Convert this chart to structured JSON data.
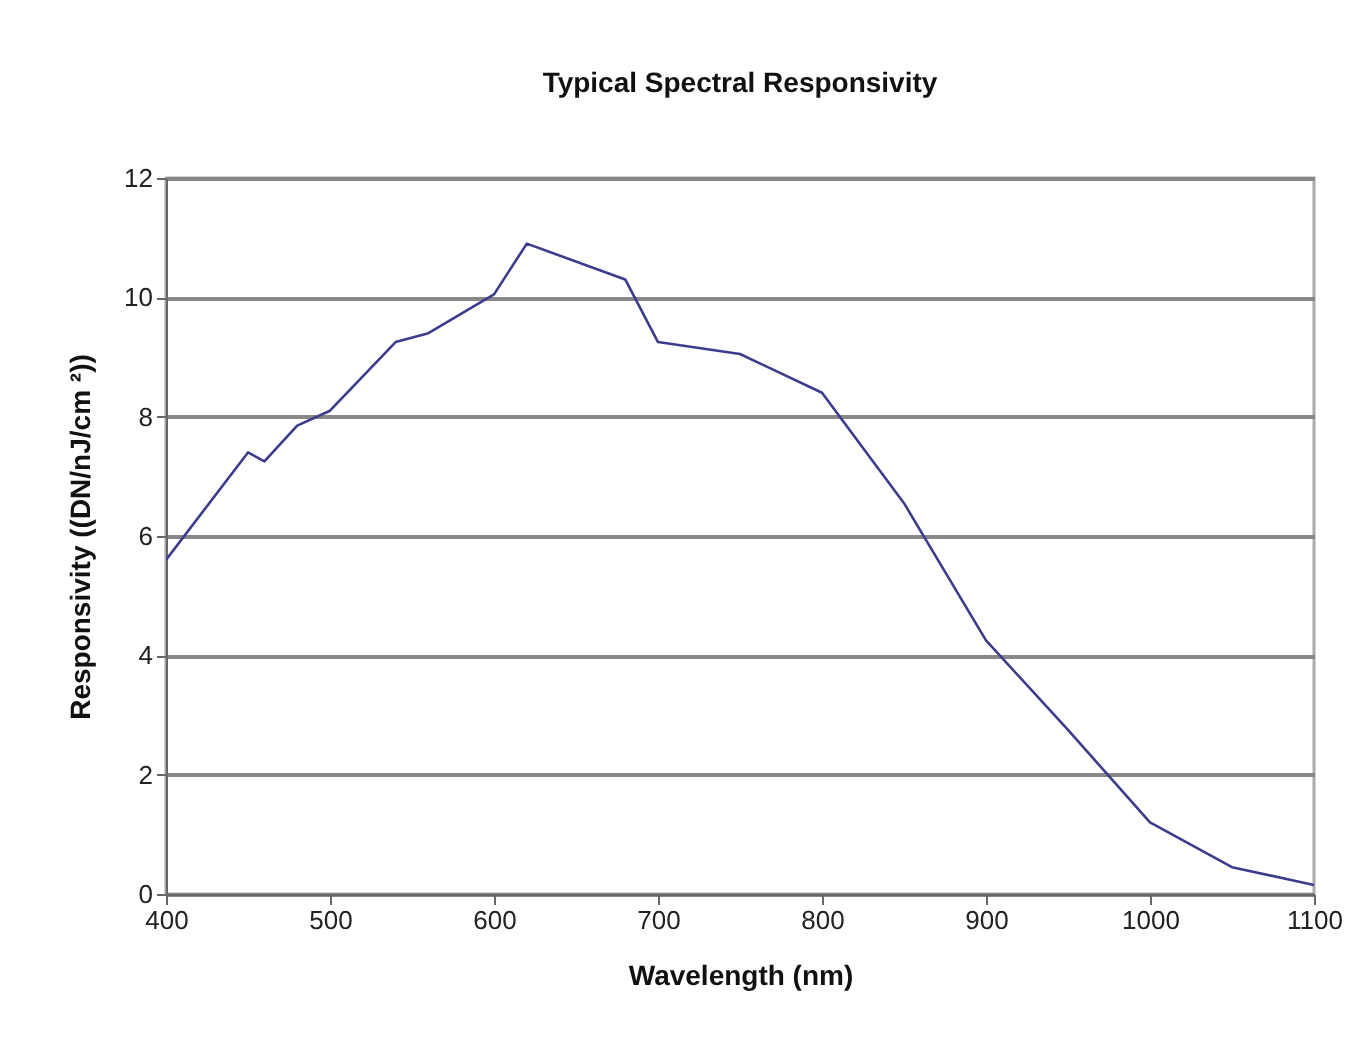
{
  "chart_data": {
    "type": "line",
    "title": "Typical Spectral Responsivity",
    "xlabel": "Wavelength (nm)",
    "ylabel": "Responsivity ((DN/nJ/cm ²))",
    "x": [
      400,
      450,
      460,
      480,
      500,
      540,
      560,
      600,
      620,
      680,
      700,
      750,
      800,
      850,
      900,
      950,
      1000,
      1050,
      1100
    ],
    "series": [
      {
        "color": "#3c3c8c",
        "values": [
          5.6,
          7.4,
          7.25,
          7.85,
          8.1,
          9.25,
          9.4,
          10.05,
          10.9,
          10.3,
          9.25,
          9.05,
          8.4,
          6.55,
          4.25,
          2.75,
          1.2,
          0.45,
          0.15
        ]
      }
    ],
    "xlim": [
      400,
      1100
    ],
    "xticks": [
      400,
      500,
      600,
      700,
      800,
      900,
      1000,
      1100
    ],
    "ylim": [
      0,
      12
    ],
    "yticks": [
      0,
      2,
      4,
      6,
      8,
      10,
      12
    ],
    "grid": "y"
  }
}
